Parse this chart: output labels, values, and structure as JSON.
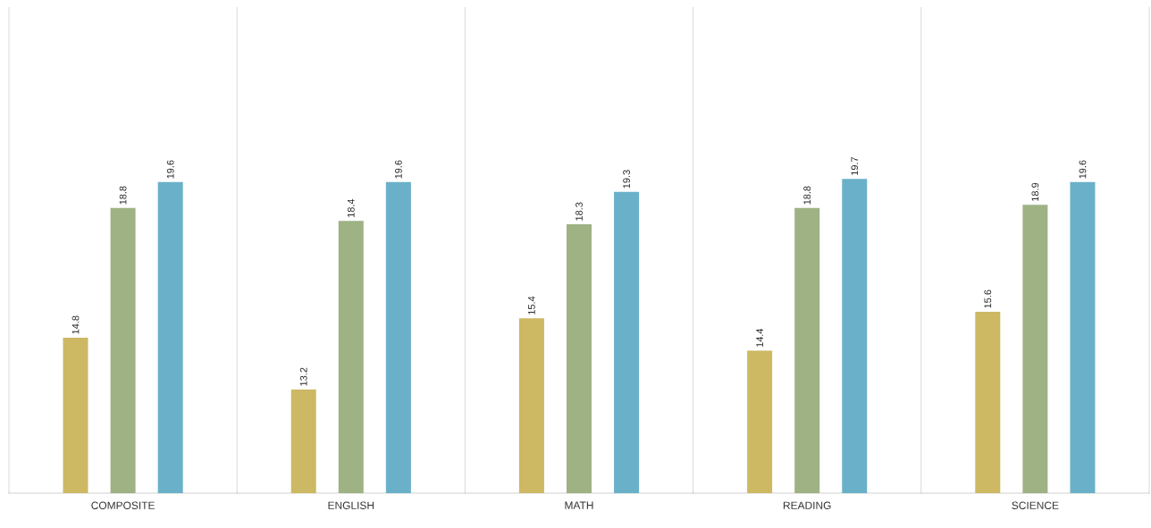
{
  "chart_data": {
    "type": "bar",
    "categories": [
      "COMPOSITE",
      "ENGLISH",
      "MATH",
      "READING",
      "SCIENCE"
    ],
    "series": [
      {
        "color": "#cdb864",
        "values": [
          14.8,
          13.2,
          15.4,
          14.4,
          15.6
        ]
      },
      {
        "color": "#9eb284",
        "values": [
          18.8,
          18.4,
          18.3,
          18.8,
          18.9
        ]
      },
      {
        "color": "#6ab0c8",
        "values": [
          19.6,
          19.6,
          19.3,
          19.7,
          19.6
        ]
      }
    ],
    "ylim": [
      10,
      25
    ],
    "data_labels": true,
    "grid": "x",
    "tick_labels": "x"
  }
}
